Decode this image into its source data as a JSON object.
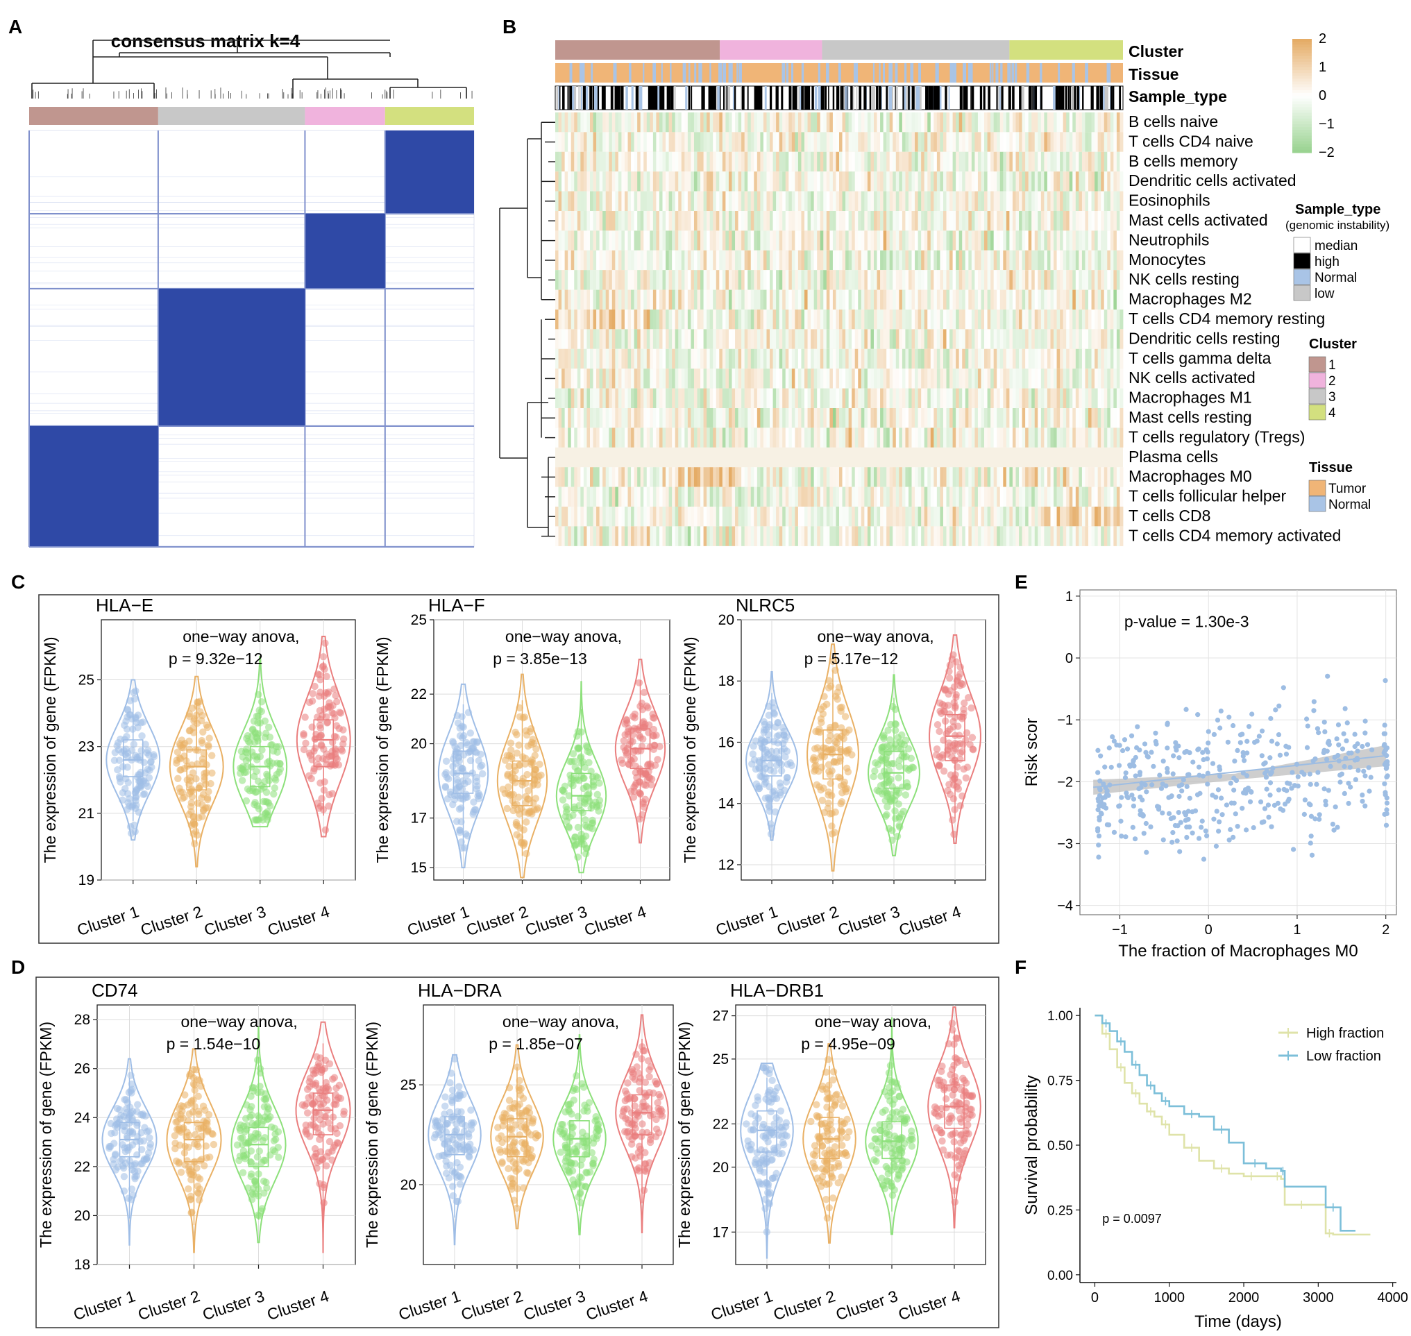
{
  "panel_letters": [
    "A",
    "B",
    "C",
    "D",
    "E",
    "F"
  ],
  "chart_data": [
    {
      "panel": "A",
      "type": "heatmap",
      "title": "consensus matrix k=4",
      "k": 4,
      "cluster_colors": [
        "#c0968f",
        "#c8c8c8",
        "#f0b3dd",
        "#d3e07f"
      ],
      "cluster_order": [
        1,
        3,
        2,
        4
      ],
      "relative_sizes": [
        0.29,
        0.33,
        0.18,
        0.2
      ],
      "high_color": "#2f49a6",
      "low_color": "#ffffff"
    },
    {
      "panel": "B",
      "type": "heatmap",
      "annotation_tracks": [
        "Cluster",
        "Tissue",
        "Sample_type"
      ],
      "cluster_bar": [
        {
          "cluster": 1,
          "share": 0.29
        },
        {
          "cluster": 2,
          "share": 0.18
        },
        {
          "cluster": 3,
          "share": 0.33
        },
        {
          "cluster": 4,
          "share": 0.2
        }
      ],
      "rows": [
        "B cells naive",
        "T cells CD4 naive",
        "B cells memory",
        "Dendritic cells activated",
        "Eosinophils",
        "Mast cells activated",
        "Neutrophils",
        "Monocytes",
        "NK cells resting",
        "Macrophages M2",
        "T cells CD4 memory resting",
        "Dendritic cells resting",
        "T cells gamma delta",
        "NK cells activated",
        "Macrophages M1",
        "Mast cells resting",
        "T cells regulatory (Tregs)",
        "Plasma cells",
        "Macrophages M0",
        "T cells follicular helper",
        "T cells CD8",
        "T cells CD4 memory activated"
      ],
      "color_scale": {
        "ticks": [
          "2",
          "1",
          "0",
          "−1",
          "−2"
        ],
        "min": -2,
        "max": 2,
        "high": "#e5ac66",
        "mid": "#ffffff",
        "low": "#9ad391"
      },
      "legends": [
        {
          "title": "Sample_type",
          "subtitle": "(genomic instability)",
          "items": [
            {
              "label": "median",
              "color": "#ffffff"
            },
            {
              "label": "high",
              "color": "#000000"
            },
            {
              "label": "Normal",
              "color": "#a9c4e6"
            },
            {
              "label": "low",
              "color": "#c8c8c8"
            }
          ]
        },
        {
          "title": "Cluster",
          "items": [
            {
              "label": "1",
              "color": "#c0968f"
            },
            {
              "label": "2",
              "color": "#f0b3dd"
            },
            {
              "label": "3",
              "color": "#c8c8c8"
            },
            {
              "label": "4",
              "color": "#d3e07f"
            }
          ]
        },
        {
          "title": "Tissue",
          "items": [
            {
              "label": "Tumor",
              "color": "#f0b577"
            },
            {
              "label": "Normal",
              "color": "#a9c4e6"
            }
          ]
        }
      ]
    },
    {
      "panel": "C",
      "type": "violin",
      "ylabel": "The expression of gene (FPKM)",
      "categories": [
        "Cluster 1",
        "Cluster 2",
        "Cluster 3",
        "Cluster 4"
      ],
      "colors": [
        "#9ebde6",
        "#e9b064",
        "#8ce07a",
        "#ea7e7e"
      ],
      "plots": [
        {
          "gene": "HLA−E",
          "stat": "one−way anova,",
          "pval": "p = 9.32e−12",
          "ylim": [
            19,
            26.8
          ],
          "yticks": [
            19,
            21,
            23,
            25
          ],
          "medians": [
            22.6,
            22.4,
            22.4,
            23.2
          ],
          "q1": [
            22.1,
            21.7,
            21.8,
            22.4
          ],
          "q3": [
            23.2,
            22.9,
            23.0,
            23.8
          ],
          "mins": [
            20.2,
            19.4,
            20.6,
            20.3
          ],
          "maxs": [
            25.0,
            25.1,
            25.7,
            26.3
          ]
        },
        {
          "gene": "HLA−F",
          "stat": "one−way anova,",
          "pval": "p = 3.85e−13",
          "ylim": [
            14.5,
            25
          ],
          "yticks": [
            15,
            17,
            20,
            22,
            25
          ],
          "medians": [
            18.8,
            18.5,
            17.9,
            19.8
          ],
          "q1": [
            18.0,
            17.5,
            17.3,
            19.0
          ],
          "q3": [
            19.7,
            19.3,
            18.8,
            20.6
          ],
          "mins": [
            15.0,
            14.6,
            14.8,
            16.0
          ],
          "maxs": [
            22.4,
            22.8,
            22.5,
            23.4
          ]
        },
        {
          "gene": "NLRC5",
          "stat": "one−way anova,",
          "pval": "p = 5.17e−12",
          "ylim": [
            11.5,
            20
          ],
          "yticks": [
            12,
            14,
            16,
            18,
            20
          ],
          "medians": [
            15.4,
            15.6,
            15.0,
            16.2
          ],
          "q1": [
            14.9,
            14.8,
            14.5,
            15.4
          ],
          "q3": [
            16.0,
            16.4,
            15.7,
            16.9
          ],
          "mins": [
            12.8,
            11.8,
            12.3,
            12.7
          ],
          "maxs": [
            18.3,
            19.2,
            18.2,
            19.5
          ]
        }
      ]
    },
    {
      "panel": "D",
      "type": "violin",
      "ylabel": "The expression of gene (FPKM)",
      "categories": [
        "Cluster 1",
        "Cluster 2",
        "Cluster 3",
        "Cluster 4"
      ],
      "colors": [
        "#9ebde6",
        "#e9b064",
        "#8ce07a",
        "#ea7e7e"
      ],
      "plots": [
        {
          "gene": "CD74",
          "stat": "one−way anova,",
          "pval": "p = 1.54e−10",
          "ylim": [
            18,
            28.6
          ],
          "yticks": [
            18,
            20,
            22,
            24,
            26,
            28
          ],
          "medians": [
            23.1,
            23.1,
            22.9,
            24.3
          ],
          "q1": [
            22.4,
            22.2,
            22.0,
            23.3
          ],
          "q3": [
            23.8,
            23.8,
            23.6,
            25.0
          ],
          "mins": [
            18.8,
            18.5,
            18.9,
            18.5
          ],
          "maxs": [
            26.4,
            26.8,
            27.7,
            27.9
          ]
        },
        {
          "gene": "HLA−DRA",
          "stat": "one−way anova,",
          "pval": "p = 1.85e−07",
          "ylim": [
            16,
            29
          ],
          "yticks": [
            20,
            25
          ],
          "medians": [
            22.5,
            22.4,
            22.3,
            23.6
          ],
          "q1": [
            21.5,
            21.4,
            21.4,
            22.5
          ],
          "q3": [
            23.4,
            23.3,
            23.2,
            24.5
          ],
          "mins": [
            17.0,
            17.8,
            17.5,
            17.6
          ],
          "maxs": [
            26.5,
            27.0,
            27.5,
            28.5
          ]
        },
        {
          "gene": "HLA−DRB1",
          "stat": "one−way anova,",
          "pval": "p = 4.95e−09",
          "ylim": [
            15.5,
            27.5
          ],
          "yticks": [
            17,
            20,
            22,
            25,
            27
          ],
          "medians": [
            21.7,
            21.3,
            21.2,
            22.8
          ],
          "q1": [
            20.7,
            20.4,
            20.4,
            21.8
          ],
          "q3": [
            22.6,
            22.3,
            22.1,
            23.8
          ],
          "mins": [
            15.8,
            16.5,
            16.9,
            17.2
          ],
          "maxs": [
            24.8,
            25.7,
            26.9,
            27.4
          ]
        }
      ]
    },
    {
      "panel": "E",
      "type": "scatter",
      "xlabel": "The fraction of Macrophages M0",
      "ylabel": "Risk scor",
      "xlim": [
        -1.45,
        2.12
      ],
      "ylim": [
        -4.15,
        1.1
      ],
      "xticks": [
        "−1",
        "0",
        "1",
        "2"
      ],
      "yticks": [
        "−4",
        "−3",
        "−2",
        "−1",
        "0",
        "1"
      ],
      "annotation": "p-value = 1.30e-3",
      "trend": {
        "x": [
          -1.3,
          2.0
        ],
        "y": [
          -2.09,
          -1.58
        ]
      },
      "point_color": "#9dbde3",
      "n_points": 420
    },
    {
      "panel": "F",
      "type": "line",
      "xlabel": "Time (days)",
      "ylabel": "Survival probability",
      "xlim": [
        -200,
        4050
      ],
      "ylim": [
        -0.03,
        1.03
      ],
      "xticks": [
        "0",
        "1000",
        "2000",
        "3000",
        "4000"
      ],
      "yticks": [
        "0.00",
        "0.25",
        "0.50",
        "0.75",
        "1.00"
      ],
      "annotation": "p = 0.0097",
      "series": [
        {
          "name": "High fraction",
          "color": "#dfe3a9",
          "x": [
            0,
            100,
            200,
            300,
            400,
            500,
            600,
            700,
            800,
            900,
            1000,
            1200,
            1400,
            1600,
            1800,
            2000,
            2200,
            2400,
            2500,
            2550,
            3000,
            3100,
            3200,
            3700
          ],
          "y": [
            1.0,
            0.93,
            0.87,
            0.8,
            0.74,
            0.7,
            0.66,
            0.63,
            0.61,
            0.58,
            0.54,
            0.49,
            0.44,
            0.41,
            0.39,
            0.38,
            0.38,
            0.38,
            0.37,
            0.27,
            0.27,
            0.16,
            0.155,
            0.155
          ]
        },
        {
          "name": "Low fraction",
          "color": "#7cbfd9",
          "x": [
            0,
            100,
            200,
            300,
            400,
            500,
            600,
            700,
            800,
            900,
            1000,
            1200,
            1400,
            1600,
            1800,
            2000,
            2300,
            2500,
            2550,
            3100,
            3300,
            3500
          ],
          "y": [
            1.0,
            0.97,
            0.94,
            0.9,
            0.86,
            0.81,
            0.77,
            0.73,
            0.7,
            0.67,
            0.65,
            0.62,
            0.61,
            0.56,
            0.51,
            0.43,
            0.41,
            0.4,
            0.34,
            0.26,
            0.17,
            0.17
          ]
        }
      ]
    }
  ]
}
